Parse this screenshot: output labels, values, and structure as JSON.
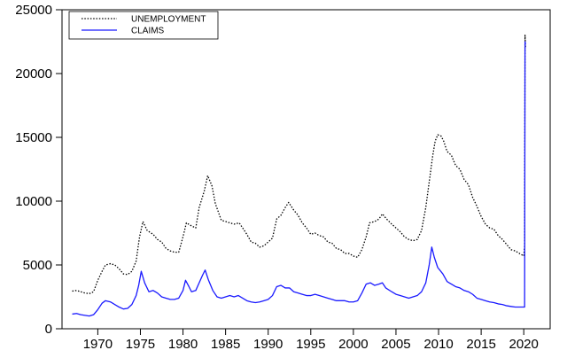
{
  "chart_data": {
    "type": "line",
    "title": "",
    "xlabel": "",
    "ylabel": "",
    "xlim": [
      1965.8,
      2023.1
    ],
    "ylim": [
      0,
      25000
    ],
    "x_ticks": [
      1970,
      1975,
      1980,
      1985,
      1990,
      1995,
      2000,
      2005,
      2010,
      2015,
      2020
    ],
    "y_ticks": [
      0,
      5000,
      10000,
      15000,
      20000,
      25000
    ],
    "grid": false,
    "legend_position": "top-left",
    "series": [
      {
        "name": "UNEMPLOYMENT",
        "color": "#000000",
        "style": "dotted",
        "points": [
          [
            1967.0,
            2950
          ],
          [
            1967.5,
            3000
          ],
          [
            1968.0,
            2900
          ],
          [
            1968.5,
            2800
          ],
          [
            1969.0,
            2750
          ],
          [
            1969.5,
            2900
          ],
          [
            1970.0,
            3800
          ],
          [
            1970.5,
            4500
          ],
          [
            1970.9,
            5000
          ],
          [
            1971.5,
            5100
          ],
          [
            1972.0,
            5000
          ],
          [
            1972.5,
            4700
          ],
          [
            1973.0,
            4300
          ],
          [
            1973.5,
            4250
          ],
          [
            1974.0,
            4500
          ],
          [
            1974.5,
            5300
          ],
          [
            1974.9,
            7200
          ],
          [
            1975.3,
            8400
          ],
          [
            1975.8,
            7700
          ],
          [
            1976.5,
            7400
          ],
          [
            1977.0,
            7000
          ],
          [
            1977.5,
            6800
          ],
          [
            1978.0,
            6300
          ],
          [
            1978.5,
            6100
          ],
          [
            1979.0,
            6000
          ],
          [
            1979.5,
            6000
          ],
          [
            1980.0,
            7200
          ],
          [
            1980.4,
            8300
          ],
          [
            1980.9,
            8100
          ],
          [
            1981.5,
            7900
          ],
          [
            1981.9,
            9500
          ],
          [
            1982.5,
            10800
          ],
          [
            1982.9,
            12000
          ],
          [
            1983.4,
            11200
          ],
          [
            1983.8,
            9800
          ],
          [
            1984.5,
            8500
          ],
          [
            1985.0,
            8400
          ],
          [
            1985.5,
            8300
          ],
          [
            1986.0,
            8200
          ],
          [
            1986.6,
            8300
          ],
          [
            1987.0,
            7900
          ],
          [
            1987.5,
            7400
          ],
          [
            1988.0,
            6800
          ],
          [
            1988.5,
            6700
          ],
          [
            1989.0,
            6400
          ],
          [
            1989.5,
            6500
          ],
          [
            1990.0,
            6800
          ],
          [
            1990.5,
            7100
          ],
          [
            1991.0,
            8600
          ],
          [
            1991.5,
            8900
          ],
          [
            1992.0,
            9500
          ],
          [
            1992.4,
            9900
          ],
          [
            1993.0,
            9300
          ],
          [
            1993.5,
            8900
          ],
          [
            1994.0,
            8300
          ],
          [
            1994.5,
            7900
          ],
          [
            1995.0,
            7400
          ],
          [
            1995.5,
            7500
          ],
          [
            1996.0,
            7300
          ],
          [
            1996.5,
            7200
          ],
          [
            1997.0,
            6800
          ],
          [
            1997.5,
            6700
          ],
          [
            1998.0,
            6300
          ],
          [
            1998.5,
            6200
          ],
          [
            1999.0,
            5900
          ],
          [
            1999.5,
            5900
          ],
          [
            2000.0,
            5700
          ],
          [
            2000.5,
            5600
          ],
          [
            2001.0,
            6200
          ],
          [
            2001.5,
            7200
          ],
          [
            2001.9,
            8300
          ],
          [
            2002.5,
            8400
          ],
          [
            2003.0,
            8600
          ],
          [
            2003.4,
            9000
          ],
          [
            2003.9,
            8600
          ],
          [
            2004.5,
            8200
          ],
          [
            2005.0,
            7900
          ],
          [
            2005.5,
            7600
          ],
          [
            2006.0,
            7200
          ],
          [
            2006.5,
            7000
          ],
          [
            2007.0,
            6900
          ],
          [
            2007.5,
            7000
          ],
          [
            2008.0,
            7700
          ],
          [
            2008.5,
            9500
          ],
          [
            2008.9,
            11500
          ],
          [
            2009.3,
            13500
          ],
          [
            2009.6,
            14700
          ],
          [
            2009.9,
            15200
          ],
          [
            2010.3,
            15100
          ],
          [
            2010.6,
            14700
          ],
          [
            2011.0,
            13900
          ],
          [
            2011.5,
            13600
          ],
          [
            2012.0,
            12800
          ],
          [
            2012.5,
            12500
          ],
          [
            2013.0,
            11700
          ],
          [
            2013.5,
            11300
          ],
          [
            2014.0,
            10300
          ],
          [
            2014.5,
            9600
          ],
          [
            2015.0,
            8800
          ],
          [
            2015.5,
            8200
          ],
          [
            2016.0,
            7900
          ],
          [
            2016.5,
            7800
          ],
          [
            2017.0,
            7300
          ],
          [
            2017.5,
            7000
          ],
          [
            2018.0,
            6600
          ],
          [
            2018.5,
            6200
          ],
          [
            2019.0,
            6100
          ],
          [
            2019.5,
            5900
          ],
          [
            2020.0,
            5700
          ],
          [
            2020.1,
            6500
          ],
          [
            2020.15,
            23000
          ],
          [
            2020.2,
            22000
          ]
        ]
      },
      {
        "name": "CLAIMS",
        "color": "#1a1aff",
        "style": "solid",
        "points": [
          [
            1967.0,
            1150
          ],
          [
            1967.5,
            1200
          ],
          [
            1968.0,
            1100
          ],
          [
            1968.5,
            1050
          ],
          [
            1969.0,
            1000
          ],
          [
            1969.5,
            1100
          ],
          [
            1970.0,
            1500
          ],
          [
            1970.5,
            2000
          ],
          [
            1970.9,
            2200
          ],
          [
            1971.5,
            2100
          ],
          [
            1972.0,
            1900
          ],
          [
            1972.5,
            1700
          ],
          [
            1973.0,
            1550
          ],
          [
            1973.5,
            1600
          ],
          [
            1974.0,
            1900
          ],
          [
            1974.5,
            2600
          ],
          [
            1974.8,
            3400
          ],
          [
            1975.1,
            4500
          ],
          [
            1975.5,
            3600
          ],
          [
            1976.0,
            2900
          ],
          [
            1976.5,
            3000
          ],
          [
            1977.0,
            2800
          ],
          [
            1977.5,
            2500
          ],
          [
            1978.0,
            2400
          ],
          [
            1978.5,
            2300
          ],
          [
            1979.0,
            2300
          ],
          [
            1979.5,
            2400
          ],
          [
            1980.0,
            3000
          ],
          [
            1980.3,
            3800
          ],
          [
            1980.7,
            3300
          ],
          [
            1981.0,
            2900
          ],
          [
            1981.5,
            3000
          ],
          [
            1981.9,
            3600
          ],
          [
            1982.3,
            4200
          ],
          [
            1982.6,
            4600
          ],
          [
            1983.0,
            3800
          ],
          [
            1983.5,
            3000
          ],
          [
            1984.0,
            2500
          ],
          [
            1984.5,
            2400
          ],
          [
            1985.0,
            2500
          ],
          [
            1985.5,
            2600
          ],
          [
            1986.0,
            2500
          ],
          [
            1986.5,
            2600
          ],
          [
            1987.0,
            2400
          ],
          [
            1987.5,
            2200
          ],
          [
            1988.0,
            2100
          ],
          [
            1988.5,
            2050
          ],
          [
            1989.0,
            2100
          ],
          [
            1989.5,
            2200
          ],
          [
            1990.0,
            2300
          ],
          [
            1990.5,
            2600
          ],
          [
            1991.0,
            3300
          ],
          [
            1991.5,
            3400
          ],
          [
            1992.0,
            3200
          ],
          [
            1992.5,
            3200
          ],
          [
            1993.0,
            2900
          ],
          [
            1993.5,
            2800
          ],
          [
            1994.0,
            2700
          ],
          [
            1994.5,
            2600
          ],
          [
            1995.0,
            2600
          ],
          [
            1995.5,
            2700
          ],
          [
            1996.0,
            2600
          ],
          [
            1996.5,
            2500
          ],
          [
            1997.0,
            2400
          ],
          [
            1997.5,
            2300
          ],
          [
            1998.0,
            2200
          ],
          [
            1998.5,
            2200
          ],
          [
            1999.0,
            2200
          ],
          [
            1999.5,
            2100
          ],
          [
            2000.0,
            2100
          ],
          [
            2000.5,
            2200
          ],
          [
            2001.0,
            2800
          ],
          [
            2001.5,
            3500
          ],
          [
            2002.0,
            3600
          ],
          [
            2002.5,
            3400
          ],
          [
            2003.0,
            3500
          ],
          [
            2003.4,
            3600
          ],
          [
            2003.8,
            3200
          ],
          [
            2004.5,
            2900
          ],
          [
            2005.0,
            2700
          ],
          [
            2005.5,
            2600
          ],
          [
            2006.0,
            2500
          ],
          [
            2006.5,
            2400
          ],
          [
            2007.0,
            2500
          ],
          [
            2007.5,
            2600
          ],
          [
            2008.0,
            2900
          ],
          [
            2008.5,
            3600
          ],
          [
            2008.9,
            5000
          ],
          [
            2009.2,
            6400
          ],
          [
            2009.5,
            5600
          ],
          [
            2009.9,
            4800
          ],
          [
            2010.5,
            4300
          ],
          [
            2011.0,
            3700
          ],
          [
            2011.5,
            3500
          ],
          [
            2012.0,
            3300
          ],
          [
            2012.5,
            3200
          ],
          [
            2013.0,
            3000
          ],
          [
            2013.5,
            2900
          ],
          [
            2014.0,
            2700
          ],
          [
            2014.5,
            2400
          ],
          [
            2015.0,
            2300
          ],
          [
            2015.5,
            2200
          ],
          [
            2016.0,
            2100
          ],
          [
            2016.5,
            2050
          ],
          [
            2017.0,
            1950
          ],
          [
            2017.5,
            1900
          ],
          [
            2018.0,
            1800
          ],
          [
            2018.5,
            1750
          ],
          [
            2019.0,
            1700
          ],
          [
            2019.5,
            1700
          ],
          [
            2020.0,
            1700
          ],
          [
            2020.1,
            1700
          ],
          [
            2020.15,
            22500
          ],
          [
            2020.2,
            22300
          ]
        ]
      }
    ]
  }
}
